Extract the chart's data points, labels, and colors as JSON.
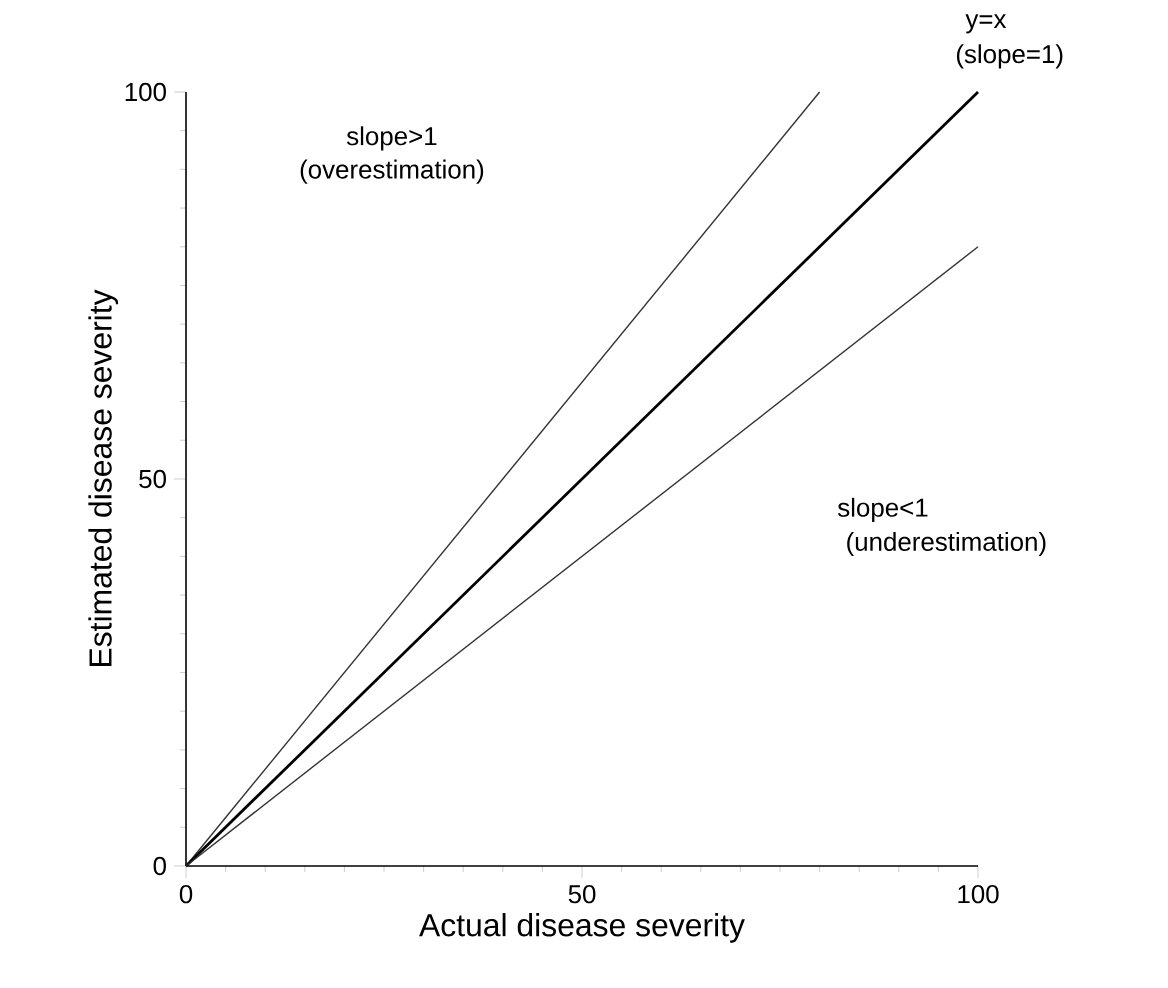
{
  "chart_data": {
    "type": "line",
    "xlabel": "Actual disease severity",
    "ylabel": "Estimated disease severity",
    "xlim": [
      0,
      100
    ],
    "ylim": [
      0,
      100
    ],
    "xticks": [
      0,
      50,
      100
    ],
    "yticks": [
      0,
      50,
      100
    ],
    "grid": false,
    "marker": "none",
    "line_style": "solid",
    "series": [
      {
        "color": "#333333",
        "x": [
          0,
          80
        ],
        "values": [
          0,
          100
        ]
      },
      {
        "color": "#000000",
        "x": [
          0,
          100
        ],
        "values": [
          0,
          100
        ]
      },
      {
        "color": "#333333",
        "x": [
          0,
          100
        ],
        "values": [
          0,
          80
        ]
      }
    ],
    "annotations": [
      "slope>1",
      "(overestimation)",
      "y=x",
      "(slope=1)",
      "slope<1",
      "(underestimation)"
    ]
  }
}
